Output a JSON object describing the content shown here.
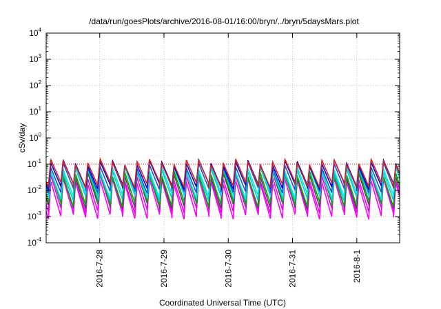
{
  "chart_data": {
    "type": "line",
    "title": "/data/run/goesPlots/archive/2016-08-01/16:00/bryn/../bryn/5daysMars.plot",
    "xlabel": "Coordinated Universal Time (UTC)",
    "ylabel": "cSv/day",
    "y_scale": "log",
    "ylim": [
      0.0001,
      10000
    ],
    "y_ticks": [
      {
        "base": "10",
        "exp": "-4",
        "value": 0.0001
      },
      {
        "base": "10",
        "exp": "-3",
        "value": 0.001
      },
      {
        "base": "10",
        "exp": "-2",
        "value": 0.01
      },
      {
        "base": "10",
        "exp": "-1",
        "value": 0.1
      },
      {
        "base": "10",
        "exp": "0",
        "value": 1
      },
      {
        "base": "10",
        "exp": "1",
        "value": 10
      },
      {
        "base": "10",
        "exp": "2",
        "value": 100
      },
      {
        "base": "10",
        "exp": "3",
        "value": 1000
      },
      {
        "base": "10",
        "exp": "4",
        "value": 10000
      }
    ],
    "xlim": [
      "2016-07-27 04:00",
      "2016-08-01 16:00"
    ],
    "x_ticks": [
      {
        "label": "2016-7-28",
        "date": "2016-07-28 00:00"
      },
      {
        "label": "2016-7-29",
        "date": "2016-07-29 00:00"
      },
      {
        "label": "2016-7-30",
        "date": "2016-07-30 00:00"
      },
      {
        "label": "2016-7-31",
        "date": "2016-07-31 00:00"
      },
      {
        "label": "2016-8-1",
        "date": "2016-08-01 00:00"
      }
    ],
    "grid": true,
    "reference_line": {
      "value": 0.1,
      "color": "#ff0000",
      "style": "dotted"
    },
    "oscillation_period_hours": 4.6,
    "series": [
      {
        "color": "#ff00ff",
        "peak": 0.022,
        "trough": 0.001
      },
      {
        "color": "#ee00ee",
        "peak": 0.03,
        "trough": 0.0017
      },
      {
        "color": "#4a4a4a",
        "peak": 0.04,
        "trough": 0.0025
      },
      {
        "color": "#00aa00",
        "peak": 0.045,
        "trough": 0.003
      },
      {
        "color": "#00cccc",
        "peak": 0.06,
        "trough": 0.005
      },
      {
        "color": "#00e5e5",
        "peak": 0.065,
        "trough": 0.006
      },
      {
        "color": "#1f4fd6",
        "peak": 0.09,
        "trough": 0.01
      },
      {
        "color": "#0000cc",
        "peak": 0.11,
        "trough": 0.014
      },
      {
        "color": "#d42020",
        "peak": 0.12,
        "trough": 0.016
      }
    ]
  }
}
